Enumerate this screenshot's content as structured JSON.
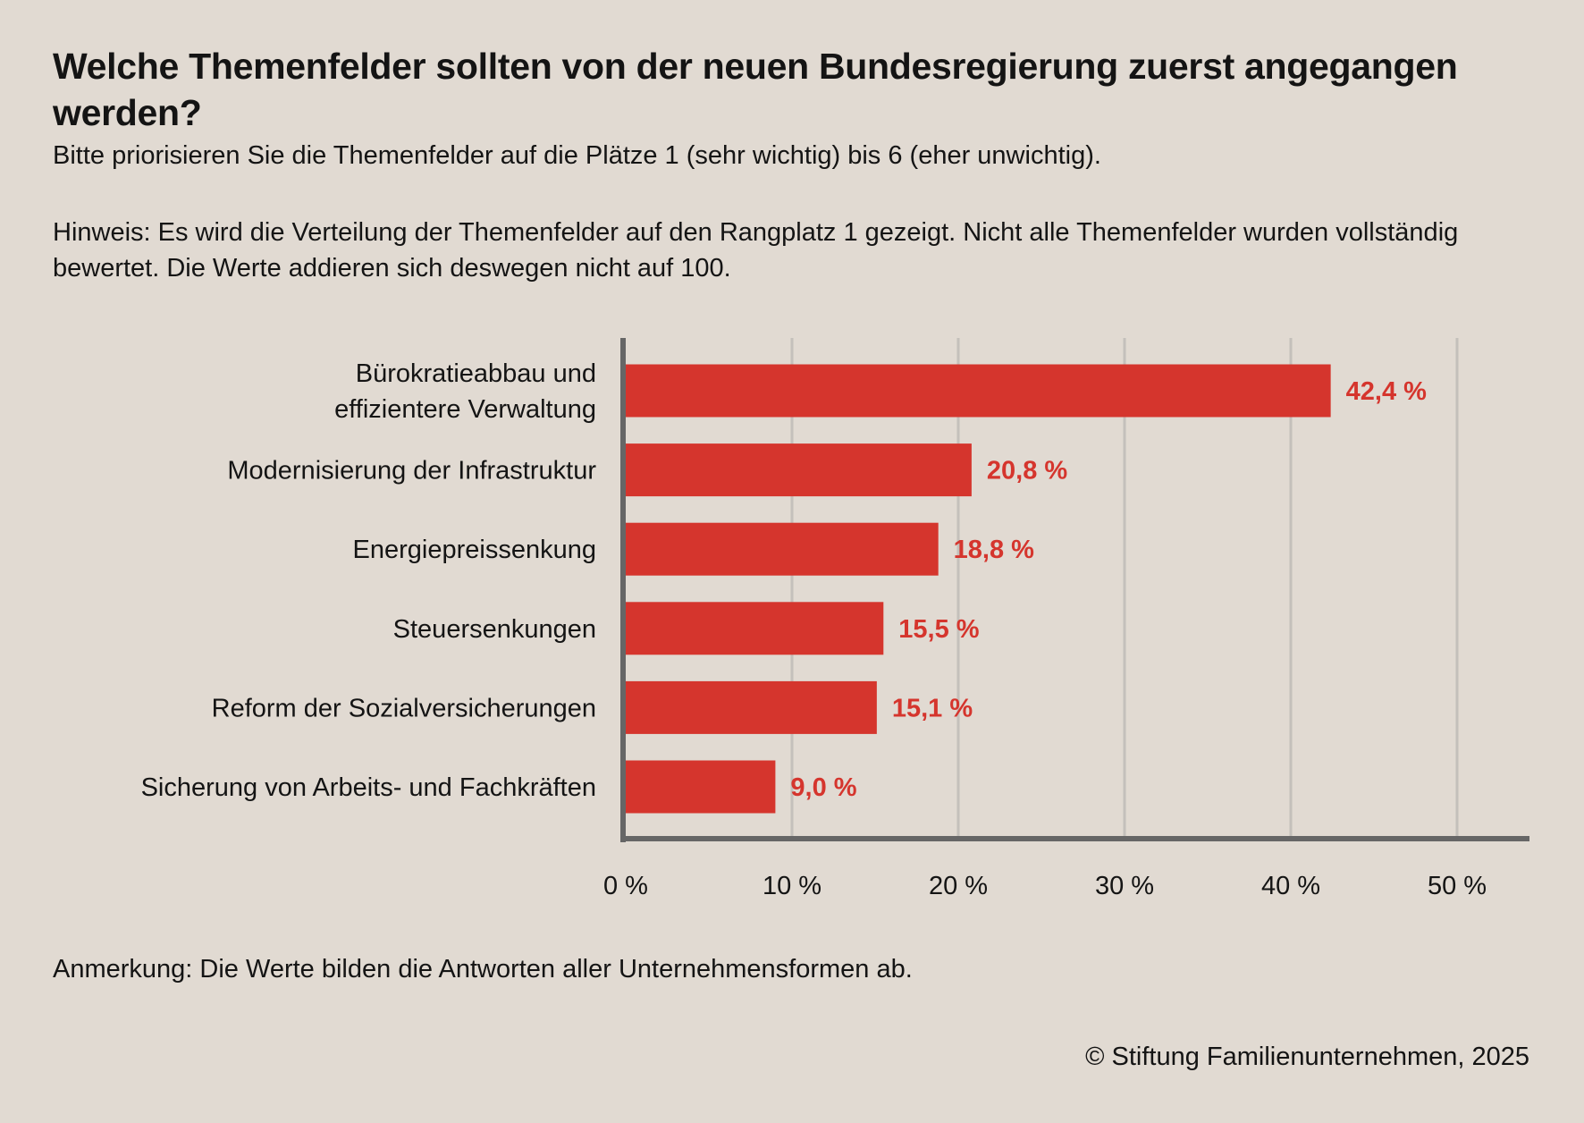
{
  "title": "Welche Themenfelder sollten von der neuen Bundesregierung zuerst angegangen werden?",
  "subtitle": "Bitte priorisieren Sie die Themenfelder auf die Plätze 1 (sehr wichtig) bis 6 (eher unwichtig).",
  "note": "Hinweis: Es wird die Verteilung der Themenfelder auf den Rangplatz 1 gezeigt. Nicht alle Themenfelder wurden vollständig bewertet. Die Werte addieren sich deswegen nicht auf 100.",
  "footnote": "Anmerkung: Die Werte bilden die Antworten aller Unternehmensformen ab.",
  "copyright": "© Stiftung Familienunternehmen, 2025",
  "colors": {
    "bar": "#d5352d",
    "background": "#e1dad2",
    "axis": "#666666",
    "grid": "#c4c0bb"
  },
  "chart_data": {
    "type": "bar",
    "orientation": "horizontal",
    "categories": [
      [
        "Bürokratieabbau und",
        "effizientere Verwaltung"
      ],
      [
        "Modernisierung der Infrastruktur"
      ],
      [
        "Energiepreissenkung"
      ],
      [
        "Steuersenkungen"
      ],
      [
        "Reform der Sozialversicherungen"
      ],
      [
        "Sicherung von Arbeits- und Fachkräften"
      ]
    ],
    "values": [
      42.4,
      20.8,
      18.8,
      15.5,
      15.1,
      9.0
    ],
    "value_labels": [
      "42,4 %",
      "20,8 %",
      "18,8 %",
      "15,5 %",
      "15,1 %",
      "9,0 %"
    ],
    "xlim": [
      0,
      55
    ],
    "ticks": [
      0,
      10,
      20,
      30,
      40,
      50
    ],
    "tick_labels": [
      "0 %",
      "10 %",
      "20 %",
      "30 %",
      "40 %",
      "50 %"
    ],
    "grid": true,
    "legend": "none"
  }
}
